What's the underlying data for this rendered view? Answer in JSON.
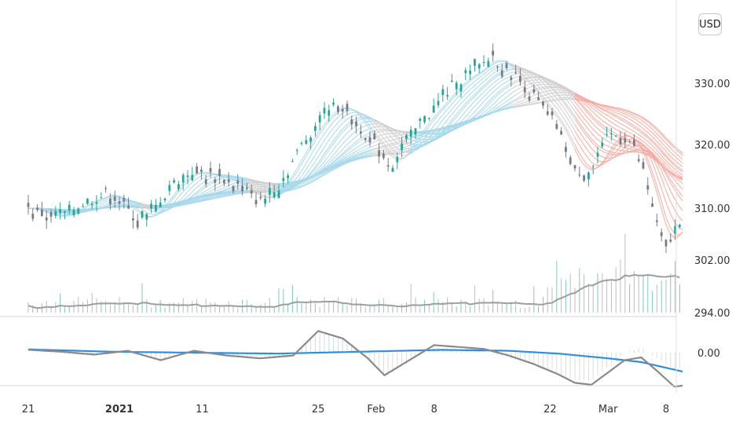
{
  "currency_label": "USD",
  "colors": {
    "up_candle": "#26a69a",
    "neutral_candle": "#787b86",
    "ribbon_bull": "#a8d8ea",
    "ribbon_neutral": "#cfcfcf",
    "ribbon_bear": "#f6a9a0",
    "volume_ma": "#9e9e9e",
    "macd_line": "#8a8a8a",
    "signal_line": "#2f8fde"
  },
  "chart_data": [
    {
      "type": "line",
      "name": "price",
      "y_ticks": [
        "330.00",
        "320.00",
        "310.00",
        "302.00",
        "294.00"
      ],
      "y_tick_values": [
        330,
        320,
        310,
        302,
        294
      ],
      "x_ticks": [
        {
          "label": "21",
          "day": 0,
          "bold": false
        },
        {
          "label": "2021",
          "day": 11,
          "bold": true
        },
        {
          "label": "11",
          "day": 21,
          "bold": false
        },
        {
          "label": "25",
          "day": 35,
          "bold": false
        },
        {
          "label": "Feb",
          "day": 42,
          "bold": false
        },
        {
          "label": "8",
          "day": 49,
          "bold": false
        },
        {
          "label": "22",
          "day": 63,
          "bold": false
        },
        {
          "label": "Mar",
          "day": 70,
          "bold": false
        },
        {
          "label": "8",
          "day": 77,
          "bold": false
        }
      ],
      "ylim": [
        294,
        334
      ],
      "close_points": [
        [
          0,
          310
        ],
        [
          2,
          309
        ],
        [
          4,
          308.5
        ],
        [
          6,
          310.5
        ],
        [
          8,
          311.5
        ],
        [
          10,
          312.5
        ],
        [
          12,
          309.5
        ],
        [
          14,
          308
        ],
        [
          16,
          311
        ],
        [
          18,
          314.5
        ],
        [
          20,
          316
        ],
        [
          22,
          315
        ],
        [
          24,
          314.5
        ],
        [
          26,
          313
        ],
        [
          28,
          311
        ],
        [
          30,
          313
        ],
        [
          32,
          317.5
        ],
        [
          34,
          322
        ],
        [
          36,
          325.5
        ],
        [
          38,
          326.5
        ],
        [
          40,
          323
        ],
        [
          42,
          319.5
        ],
        [
          44,
          316.5
        ],
        [
          46,
          321
        ],
        [
          48,
          324.5
        ],
        [
          50,
          327.5
        ],
        [
          52,
          330.5
        ],
        [
          54,
          332
        ],
        [
          56,
          334.5
        ],
        [
          58,
          332
        ],
        [
          60,
          329.5
        ],
        [
          62,
          326
        ],
        [
          64,
          322.5
        ],
        [
          66,
          316
        ],
        [
          68,
          316
        ],
        [
          70,
          321
        ],
        [
          72,
          322
        ],
        [
          74,
          317
        ],
        [
          76,
          307
        ],
        [
          77,
          303.5
        ],
        [
          78,
          306.5
        ],
        [
          79,
          309
        ]
      ]
    },
    {
      "type": "line",
      "name": "oscillator",
      "y_ticks": [
        "0.00"
      ],
      "y_tick_values": [
        0
      ],
      "ylim": [
        -5,
        3.5
      ],
      "macd_points": [
        [
          0,
          0.3
        ],
        [
          4,
          0.1
        ],
        [
          8,
          -0.2
        ],
        [
          12,
          0.2
        ],
        [
          16,
          -0.8
        ],
        [
          20,
          0.2
        ],
        [
          24,
          -0.3
        ],
        [
          28,
          -0.6
        ],
        [
          32,
          -0.3
        ],
        [
          35,
          2.3
        ],
        [
          38,
          1.5
        ],
        [
          41,
          -0.6
        ],
        [
          43,
          -2.4
        ],
        [
          46,
          -0.8
        ],
        [
          49,
          0.8
        ],
        [
          52,
          0.6
        ],
        [
          55,
          0.4
        ],
        [
          58,
          -0.3
        ],
        [
          61,
          -1.2
        ],
        [
          64,
          -2.3
        ],
        [
          66,
          -3.2
        ],
        [
          68,
          -3.4
        ],
        [
          70,
          -2.1
        ],
        [
          72,
          -0.8
        ],
        [
          74,
          -0.5
        ],
        [
          76,
          -2.0
        ],
        [
          78,
          -3.6
        ],
        [
          79,
          -3.5
        ]
      ],
      "signal_points": [
        [
          0,
          0.35
        ],
        [
          10,
          0.1
        ],
        [
          20,
          0.0
        ],
        [
          30,
          -0.1
        ],
        [
          40,
          0.1
        ],
        [
          50,
          0.3
        ],
        [
          58,
          0.2
        ],
        [
          64,
          -0.1
        ],
        [
          70,
          -0.6
        ],
        [
          74,
          -1.0
        ],
        [
          79,
          -2.0
        ]
      ]
    }
  ]
}
